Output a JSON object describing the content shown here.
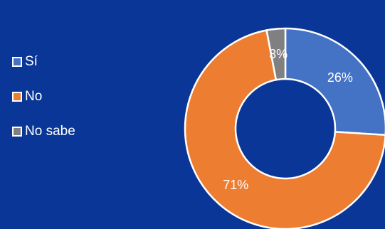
{
  "chart_data": {
    "type": "pie",
    "donut": true,
    "categories": [
      "Sí",
      "No",
      "No sabe"
    ],
    "values": [
      26,
      71,
      3
    ],
    "data_labels": [
      "26%",
      "71%",
      "3%"
    ],
    "colors": [
      "#4472c4",
      "#ed7d31",
      "#808080"
    ],
    "background_color": "#0a3797",
    "legend_position": "left"
  }
}
